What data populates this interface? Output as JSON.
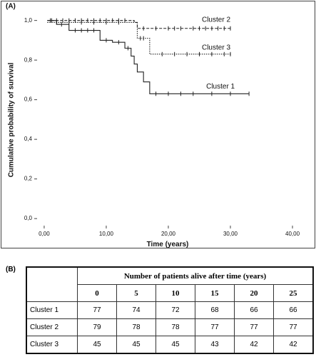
{
  "chart_data": {
    "type": "km-step",
    "panel_label": "(A)",
    "x_label": "Time (years)",
    "y_label": "Cumulative probability of survival",
    "xlim": [
      -1.6,
      43.1
    ],
    "ylim": [
      -0.05,
      1.06
    ],
    "xticks": [
      {
        "value": 0,
        "label": "0,00"
      },
      {
        "value": 10,
        "label": "10,00"
      },
      {
        "value": 20,
        "label": "20,00"
      },
      {
        "value": 30,
        "label": "30,00"
      },
      {
        "value": 40,
        "label": "40,00"
      }
    ],
    "yticks": [
      {
        "value": 0,
        "label": "0,0"
      },
      {
        "value": 0.2,
        "label": "0,2"
      },
      {
        "value": 0.4,
        "label": "0,4"
      },
      {
        "value": 0.6,
        "label": "0,6"
      },
      {
        "value": 0.8,
        "label": "0,8"
      },
      {
        "value": 1,
        "label": "1,0"
      }
    ],
    "series": [
      {
        "name": "Cluster 2",
        "color": "#222222",
        "line_style": "dashed",
        "x": [
          0.5,
          14.5,
          15,
          30
        ],
        "values": [
          1,
          0.99,
          0.96,
          0.96
        ],
        "censored": [
          1,
          2,
          3,
          4,
          5,
          6,
          7,
          8,
          9,
          10,
          11,
          12,
          13,
          16,
          18,
          20,
          21,
          22,
          24,
          25,
          26,
          27,
          28,
          29,
          30
        ]
      },
      {
        "name": "Cluster 3",
        "color": "#222222",
        "line_style": "dotted",
        "x": [
          0.5,
          15,
          17,
          30
        ],
        "values": [
          0.99,
          0.91,
          0.83,
          0.83
        ],
        "censored": [
          2,
          4,
          6,
          8,
          10,
          12,
          15.5,
          16,
          19,
          21,
          23,
          25,
          27,
          29,
          30
        ]
      },
      {
        "name": "Cluster 1",
        "color": "#222222",
        "line_style": "solid",
        "x": [
          0.5,
          2,
          4,
          9,
          11,
          13,
          14,
          14.5,
          15,
          16,
          17,
          33
        ],
        "values": [
          1,
          0.98,
          0.95,
          0.9,
          0.89,
          0.86,
          0.82,
          0.78,
          0.74,
          0.69,
          0.63,
          0.63
        ],
        "censored": [
          1.2,
          2.8,
          5,
          6,
          7,
          8,
          10,
          12,
          13.5,
          18,
          20,
          22,
          24,
          27,
          30,
          33
        ]
      }
    ]
  },
  "table": {
    "panel_label": "(B)",
    "header": "Number of patients alive after time (years)",
    "columns": [
      "0",
      "5",
      "10",
      "15",
      "20",
      "25"
    ],
    "rows": [
      [
        "Cluster 1",
        "77",
        "74",
        "72",
        "68",
        "66",
        "66"
      ],
      [
        "Cluster 2",
        "79",
        "78",
        "78",
        "77",
        "77",
        "77"
      ],
      [
        "Cluster 3",
        "45",
        "45",
        "45",
        "43",
        "42",
        "42"
      ]
    ]
  }
}
